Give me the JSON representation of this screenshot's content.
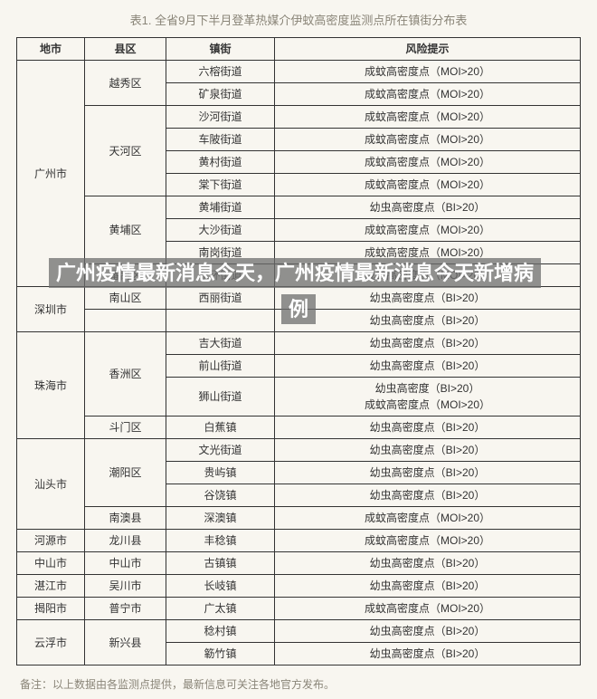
{
  "title": "表1. 全省9月下半月登革热媒介伊蚊高密度监测点所在镇街分布表",
  "headers": {
    "city": "地市",
    "district": "县区",
    "town": "镇街",
    "risk": "风险提示"
  },
  "risk_labels": {
    "moi": "成蚊高密度点（MOI>20）",
    "bi": "幼虫高密度点（BI>20）",
    "both": "幼虫高密度（BI>20）\n成蚊高密度点（MOI>20）"
  },
  "cities": [
    {
      "name": "广州市",
      "districts": [
        {
          "name": "越秀区",
          "towns": [
            {
              "name": "六榕街道",
              "risk": "moi"
            },
            {
              "name": "矿泉街道",
              "risk": "moi"
            }
          ]
        },
        {
          "name": "天河区",
          "towns": [
            {
              "name": "沙河街道",
              "risk": "moi"
            },
            {
              "name": "车陂街道",
              "risk": "moi"
            },
            {
              "name": "黄村街道",
              "risk": "moi"
            },
            {
              "name": "棠下街道",
              "risk": "moi"
            }
          ]
        },
        {
          "name": "黄埔区",
          "towns": [
            {
              "name": "黄埔街道",
              "risk": "bi"
            },
            {
              "name": "大沙街道",
              "risk": "moi"
            },
            {
              "name": "南岗街道",
              "risk": "moi"
            }
          ]
        },
        {
          "name": "番禺区",
          "towns": [
            {
              "name": "东环街道",
              "risk": "moi"
            }
          ]
        }
      ]
    },
    {
      "name": "深圳市",
      "districts": [
        {
          "name": "南山区",
          "towns": [
            {
              "name": "西丽街道",
              "risk": "bi"
            }
          ]
        },
        {
          "name": "",
          "towns": [
            {
              "name": "",
              "risk": "bi_hidden"
            }
          ]
        }
      ]
    },
    {
      "name": "珠海市",
      "districts": [
        {
          "name": "香洲区",
          "towns": [
            {
              "name": "吉大街道",
              "risk": "bi"
            },
            {
              "name": "前山街道",
              "risk": "bi"
            },
            {
              "name": "狮山街道",
              "risk": "both"
            }
          ]
        },
        {
          "name": "斗门区",
          "towns": [
            {
              "name": "白蕉镇",
              "risk": "bi"
            }
          ]
        }
      ]
    },
    {
      "name": "汕头市",
      "districts": [
        {
          "name": "潮阳区",
          "towns": [
            {
              "name": "文光街道",
              "risk": "bi"
            },
            {
              "name": "贵屿镇",
              "risk": "bi"
            },
            {
              "name": "谷饶镇",
              "risk": "bi"
            }
          ]
        },
        {
          "name": "南澳县",
          "towns": [
            {
              "name": "深澳镇",
              "risk": "moi"
            }
          ]
        }
      ]
    },
    {
      "name": "河源市",
      "districts": [
        {
          "name": "龙川县",
          "towns": [
            {
              "name": "丰稔镇",
              "risk": "moi"
            }
          ]
        }
      ]
    },
    {
      "name": "中山市",
      "districts": [
        {
          "name": "中山市",
          "towns": [
            {
              "name": "古镇镇",
              "risk": "bi"
            }
          ]
        }
      ]
    },
    {
      "name": "湛江市",
      "districts": [
        {
          "name": "吴川市",
          "towns": [
            {
              "name": "长岐镇",
              "risk": "bi"
            }
          ]
        }
      ]
    },
    {
      "name": "揭阳市",
      "districts": [
        {
          "name": "普宁市",
          "towns": [
            {
              "name": "广太镇",
              "risk": "moi"
            }
          ]
        }
      ]
    },
    {
      "name": "云浮市",
      "districts": [
        {
          "name": "新兴县",
          "towns": [
            {
              "name": "稔村镇",
              "risk": "bi"
            },
            {
              "name": "簕竹镇",
              "risk": "bi"
            }
          ]
        }
      ]
    }
  ],
  "footnote": "备注：以上数据由各监测点提供，最新信息可关注各地官方发布。",
  "overlay_text": "广州疫情最新消息今天，广州疫情最新消息今天新增病例",
  "colors": {
    "background": "#f8f6f0",
    "border": "#333333",
    "text": "#333333",
    "muted_text": "#8a8578",
    "overlay_bg": "rgba(110,110,110,0.75)",
    "overlay_text": "#ffffff"
  }
}
